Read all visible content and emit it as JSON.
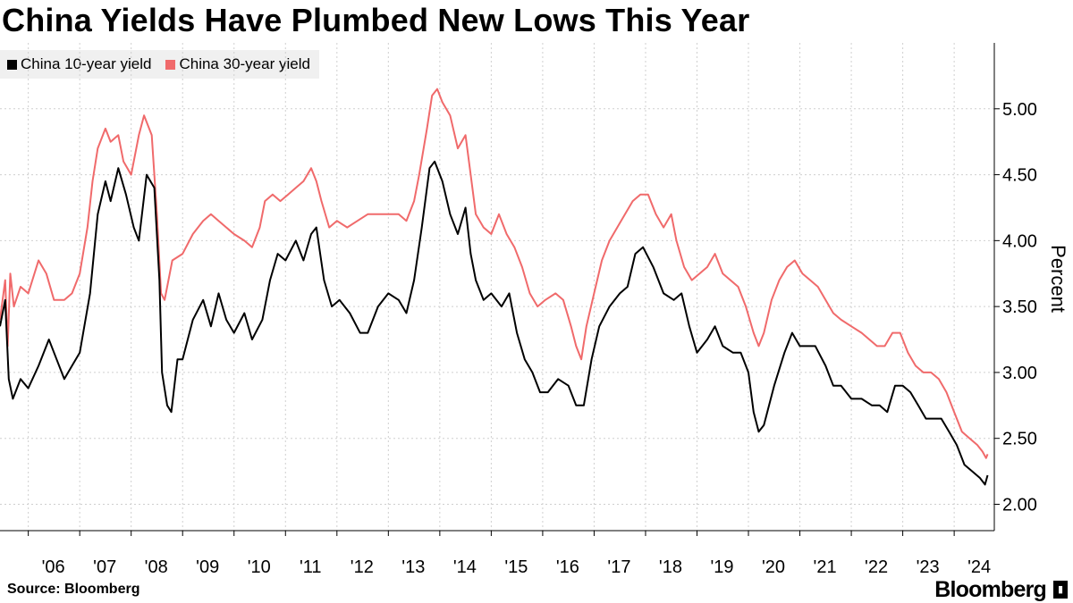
{
  "title": "China Yields Have Plumbed New Lows This Year",
  "source": "Source: Bloomberg",
  "brand": "Bloomberg",
  "chart_data": {
    "type": "line",
    "ylabel": "Percent",
    "ylim": [
      1.8,
      5.5
    ],
    "yticks": [
      2.0,
      2.5,
      3.0,
      3.5,
      4.0,
      4.5,
      5.0
    ],
    "ytick_labels": [
      "2.00",
      "2.50",
      "3.00",
      "3.50",
      "4.00",
      "4.50",
      "5.00"
    ],
    "xlim": [
      2005.45,
      2024.78
    ],
    "xticks": [
      2006,
      2007,
      2008,
      2009,
      2010,
      2011,
      2012,
      2013,
      2014,
      2015,
      2016,
      2017,
      2018,
      2019,
      2020,
      2021,
      2022,
      2023,
      2024
    ],
    "xtick_labels": [
      "'06",
      "'07",
      "'08",
      "'09",
      "'10",
      "'11",
      "'12",
      "'13",
      "'14",
      "'15",
      "'16",
      "'17",
      "'18",
      "'19",
      "'20",
      "'21",
      "'22",
      "'23",
      "'24"
    ],
    "grid": true,
    "legend": "top-left",
    "series": [
      {
        "name": "China 10-year yield",
        "color": "#000000",
        "points": [
          [
            2005.45,
            3.35
          ],
          [
            2005.55,
            3.55
          ],
          [
            2005.62,
            2.95
          ],
          [
            2005.7,
            2.8
          ],
          [
            2005.85,
            2.95
          ],
          [
            2006.0,
            2.88
          ],
          [
            2006.2,
            3.05
          ],
          [
            2006.4,
            3.25
          ],
          [
            2006.55,
            3.1
          ],
          [
            2006.7,
            2.95
          ],
          [
            2006.85,
            3.05
          ],
          [
            2007.0,
            3.15
          ],
          [
            2007.2,
            3.6
          ],
          [
            2007.35,
            4.2
          ],
          [
            2007.5,
            4.45
          ],
          [
            2007.6,
            4.3
          ],
          [
            2007.75,
            4.55
          ],
          [
            2007.9,
            4.35
          ],
          [
            2008.05,
            4.1
          ],
          [
            2008.15,
            4.0
          ],
          [
            2008.3,
            4.5
          ],
          [
            2008.45,
            4.4
          ],
          [
            2008.55,
            3.7
          ],
          [
            2008.6,
            3.0
          ],
          [
            2008.7,
            2.75
          ],
          [
            2008.78,
            2.7
          ],
          [
            2008.9,
            3.1
          ],
          [
            2009.0,
            3.1
          ],
          [
            2009.2,
            3.4
          ],
          [
            2009.4,
            3.55
          ],
          [
            2009.55,
            3.35
          ],
          [
            2009.7,
            3.6
          ],
          [
            2009.85,
            3.4
          ],
          [
            2010.0,
            3.3
          ],
          [
            2010.2,
            3.45
          ],
          [
            2010.35,
            3.25
          ],
          [
            2010.55,
            3.4
          ],
          [
            2010.7,
            3.7
          ],
          [
            2010.85,
            3.9
          ],
          [
            2011.0,
            3.85
          ],
          [
            2011.2,
            4.0
          ],
          [
            2011.35,
            3.85
          ],
          [
            2011.5,
            4.05
          ],
          [
            2011.6,
            4.1
          ],
          [
            2011.75,
            3.7
          ],
          [
            2011.9,
            3.5
          ],
          [
            2012.05,
            3.55
          ],
          [
            2012.25,
            3.45
          ],
          [
            2012.45,
            3.3
          ],
          [
            2012.6,
            3.3
          ],
          [
            2012.8,
            3.5
          ],
          [
            2013.0,
            3.6
          ],
          [
            2013.2,
            3.55
          ],
          [
            2013.35,
            3.45
          ],
          [
            2013.5,
            3.7
          ],
          [
            2013.65,
            4.1
          ],
          [
            2013.8,
            4.55
          ],
          [
            2013.9,
            4.6
          ],
          [
            2014.05,
            4.45
          ],
          [
            2014.2,
            4.2
          ],
          [
            2014.35,
            4.05
          ],
          [
            2014.5,
            4.25
          ],
          [
            2014.6,
            3.9
          ],
          [
            2014.7,
            3.7
          ],
          [
            2014.85,
            3.55
          ],
          [
            2015.0,
            3.6
          ],
          [
            2015.2,
            3.5
          ],
          [
            2015.35,
            3.6
          ],
          [
            2015.5,
            3.3
          ],
          [
            2015.65,
            3.1
          ],
          [
            2015.8,
            3.0
          ],
          [
            2015.95,
            2.85
          ],
          [
            2016.1,
            2.85
          ],
          [
            2016.3,
            2.95
          ],
          [
            2016.5,
            2.9
          ],
          [
            2016.65,
            2.75
          ],
          [
            2016.8,
            2.75
          ],
          [
            2016.95,
            3.1
          ],
          [
            2017.1,
            3.35
          ],
          [
            2017.3,
            3.5
          ],
          [
            2017.5,
            3.6
          ],
          [
            2017.65,
            3.65
          ],
          [
            2017.8,
            3.9
          ],
          [
            2017.95,
            3.95
          ],
          [
            2018.15,
            3.8
          ],
          [
            2018.35,
            3.6
          ],
          [
            2018.55,
            3.55
          ],
          [
            2018.7,
            3.6
          ],
          [
            2018.85,
            3.35
          ],
          [
            2019.0,
            3.15
          ],
          [
            2019.2,
            3.25
          ],
          [
            2019.35,
            3.35
          ],
          [
            2019.5,
            3.2
          ],
          [
            2019.7,
            3.15
          ],
          [
            2019.85,
            3.15
          ],
          [
            2020.0,
            3.0
          ],
          [
            2020.1,
            2.7
          ],
          [
            2020.2,
            2.55
          ],
          [
            2020.3,
            2.6
          ],
          [
            2020.5,
            2.9
          ],
          [
            2020.7,
            3.15
          ],
          [
            2020.85,
            3.3
          ],
          [
            2021.0,
            3.2
          ],
          [
            2021.15,
            3.2
          ],
          [
            2021.3,
            3.2
          ],
          [
            2021.5,
            3.05
          ],
          [
            2021.65,
            2.9
          ],
          [
            2021.8,
            2.9
          ],
          [
            2022.0,
            2.8
          ],
          [
            2022.2,
            2.8
          ],
          [
            2022.4,
            2.75
          ],
          [
            2022.55,
            2.75
          ],
          [
            2022.7,
            2.7
          ],
          [
            2022.85,
            2.9
          ],
          [
            2023.0,
            2.9
          ],
          [
            2023.15,
            2.85
          ],
          [
            2023.3,
            2.75
          ],
          [
            2023.45,
            2.65
          ],
          [
            2023.6,
            2.65
          ],
          [
            2023.75,
            2.65
          ],
          [
            2023.9,
            2.55
          ],
          [
            2024.05,
            2.45
          ],
          [
            2024.2,
            2.3
          ],
          [
            2024.35,
            2.25
          ],
          [
            2024.5,
            2.2
          ],
          [
            2024.6,
            2.15
          ],
          [
            2024.65,
            2.22
          ]
        ]
      },
      {
        "name": "China 30-year yield",
        "color": "#f06a6b",
        "points": [
          [
            2005.45,
            3.4
          ],
          [
            2005.55,
            3.7
          ],
          [
            2005.6,
            3.2
          ],
          [
            2005.65,
            3.75
          ],
          [
            2005.72,
            3.5
          ],
          [
            2005.85,
            3.65
          ],
          [
            2006.0,
            3.6
          ],
          [
            2006.2,
            3.85
          ],
          [
            2006.35,
            3.75
          ],
          [
            2006.5,
            3.55
          ],
          [
            2006.7,
            3.55
          ],
          [
            2006.85,
            3.6
          ],
          [
            2007.0,
            3.75
          ],
          [
            2007.15,
            4.1
          ],
          [
            2007.25,
            4.45
          ],
          [
            2007.35,
            4.7
          ],
          [
            2007.5,
            4.85
          ],
          [
            2007.6,
            4.75
          ],
          [
            2007.75,
            4.8
          ],
          [
            2007.85,
            4.6
          ],
          [
            2008.0,
            4.5
          ],
          [
            2008.15,
            4.8
          ],
          [
            2008.25,
            4.95
          ],
          [
            2008.4,
            4.8
          ],
          [
            2008.5,
            4.2
          ],
          [
            2008.58,
            3.6
          ],
          [
            2008.65,
            3.55
          ],
          [
            2008.8,
            3.85
          ],
          [
            2009.0,
            3.9
          ],
          [
            2009.2,
            4.05
          ],
          [
            2009.4,
            4.15
          ],
          [
            2009.55,
            4.2
          ],
          [
            2009.7,
            4.15
          ],
          [
            2009.85,
            4.1
          ],
          [
            2010.0,
            4.05
          ],
          [
            2010.2,
            4.0
          ],
          [
            2010.35,
            3.95
          ],
          [
            2010.5,
            4.1
          ],
          [
            2010.6,
            4.3
          ],
          [
            2010.75,
            4.35
          ],
          [
            2010.9,
            4.3
          ],
          [
            2011.05,
            4.35
          ],
          [
            2011.2,
            4.4
          ],
          [
            2011.35,
            4.45
          ],
          [
            2011.5,
            4.55
          ],
          [
            2011.6,
            4.45
          ],
          [
            2011.7,
            4.3
          ],
          [
            2011.85,
            4.1
          ],
          [
            2012.0,
            4.15
          ],
          [
            2012.2,
            4.1
          ],
          [
            2012.4,
            4.15
          ],
          [
            2012.6,
            4.2
          ],
          [
            2012.8,
            4.2
          ],
          [
            2013.0,
            4.2
          ],
          [
            2013.2,
            4.2
          ],
          [
            2013.35,
            4.15
          ],
          [
            2013.5,
            4.3
          ],
          [
            2013.6,
            4.5
          ],
          [
            2013.75,
            4.85
          ],
          [
            2013.85,
            5.1
          ],
          [
            2013.95,
            5.15
          ],
          [
            2014.05,
            5.05
          ],
          [
            2014.2,
            4.95
          ],
          [
            2014.35,
            4.7
          ],
          [
            2014.5,
            4.8
          ],
          [
            2014.6,
            4.5
          ],
          [
            2014.7,
            4.2
          ],
          [
            2014.85,
            4.1
          ],
          [
            2015.0,
            4.05
          ],
          [
            2015.15,
            4.2
          ],
          [
            2015.3,
            4.05
          ],
          [
            2015.45,
            3.95
          ],
          [
            2015.6,
            3.8
          ],
          [
            2015.75,
            3.6
          ],
          [
            2015.9,
            3.5
          ],
          [
            2016.05,
            3.55
          ],
          [
            2016.25,
            3.6
          ],
          [
            2016.4,
            3.55
          ],
          [
            2016.55,
            3.35
          ],
          [
            2016.65,
            3.2
          ],
          [
            2016.75,
            3.1
          ],
          [
            2016.85,
            3.35
          ],
          [
            2017.0,
            3.6
          ],
          [
            2017.15,
            3.85
          ],
          [
            2017.3,
            4.0
          ],
          [
            2017.45,
            4.1
          ],
          [
            2017.6,
            4.2
          ],
          [
            2017.75,
            4.3
          ],
          [
            2017.9,
            4.35
          ],
          [
            2018.05,
            4.35
          ],
          [
            2018.2,
            4.2
          ],
          [
            2018.35,
            4.1
          ],
          [
            2018.5,
            4.2
          ],
          [
            2018.6,
            4.0
          ],
          [
            2018.75,
            3.8
          ],
          [
            2018.9,
            3.7
          ],
          [
            2019.05,
            3.75
          ],
          [
            2019.2,
            3.8
          ],
          [
            2019.35,
            3.9
          ],
          [
            2019.5,
            3.75
          ],
          [
            2019.65,
            3.7
          ],
          [
            2019.8,
            3.65
          ],
          [
            2019.95,
            3.5
          ],
          [
            2020.1,
            3.3
          ],
          [
            2020.2,
            3.2
          ],
          [
            2020.3,
            3.3
          ],
          [
            2020.45,
            3.55
          ],
          [
            2020.6,
            3.7
          ],
          [
            2020.75,
            3.8
          ],
          [
            2020.9,
            3.85
          ],
          [
            2021.05,
            3.75
          ],
          [
            2021.2,
            3.7
          ],
          [
            2021.35,
            3.65
          ],
          [
            2021.5,
            3.55
          ],
          [
            2021.65,
            3.45
          ],
          [
            2021.8,
            3.4
          ],
          [
            2022.0,
            3.35
          ],
          [
            2022.2,
            3.3
          ],
          [
            2022.35,
            3.25
          ],
          [
            2022.5,
            3.2
          ],
          [
            2022.65,
            3.2
          ],
          [
            2022.8,
            3.3
          ],
          [
            2022.95,
            3.3
          ],
          [
            2023.1,
            3.15
          ],
          [
            2023.25,
            3.05
          ],
          [
            2023.4,
            3.0
          ],
          [
            2023.55,
            3.0
          ],
          [
            2023.7,
            2.95
          ],
          [
            2023.85,
            2.85
          ],
          [
            2024.0,
            2.7
          ],
          [
            2024.15,
            2.55
          ],
          [
            2024.3,
            2.5
          ],
          [
            2024.45,
            2.45
          ],
          [
            2024.55,
            2.4
          ],
          [
            2024.62,
            2.35
          ],
          [
            2024.65,
            2.38
          ]
        ]
      }
    ]
  }
}
